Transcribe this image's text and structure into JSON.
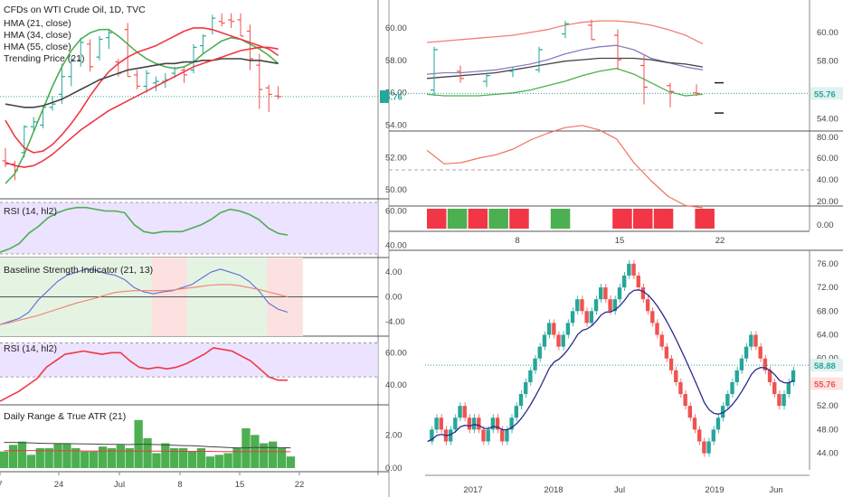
{
  "colors": {
    "up": "#26a69a",
    "down": "#ef5350",
    "green": "#4caf50",
    "red": "#f23645",
    "gray": "#444444",
    "purple": "#8e7cc3",
    "rsi_band": "#e6dcff",
    "salmon": "#f08070",
    "navy": "#2a2a8c",
    "blue": "#5b6fd6",
    "cyan": "#26a69a",
    "price": "#26a69a",
    "price_tag": "#26a69a",
    "down_tag": "#f8b8b8"
  },
  "chart_data": [
    {
      "id": "main",
      "type": "candlestick",
      "title": "CFDs on WTI Crude Oil, 1D, TVC",
      "legend": [
        "HMA (21, close)",
        "HMA (34, close)",
        "HMA (55, close)",
        "Trending Price (21)"
      ],
      "x_ticks": [
        "7",
        "24",
        "Jul",
        "8",
        "15",
        "22"
      ],
      "y_ticks": [
        "60.00",
        "58.00",
        "56.00",
        "54.00",
        "52.00",
        "50.00"
      ],
      "ylim": [
        49.9,
        61.5
      ],
      "last_price": "55.76",
      "ohlc": [
        [
          51.8,
          52.6,
          51.4,
          51.6
        ],
        [
          51.6,
          51.8,
          50.6,
          51.2
        ],
        [
          52.3,
          54.0,
          52.0,
          53.9
        ],
        [
          53.9,
          54.5,
          53.6,
          54.2
        ],
        [
          54.0,
          55.2,
          53.8,
          55.1
        ],
        [
          55.1,
          55.8,
          54.9,
          55.3
        ],
        [
          55.9,
          57.8,
          55.3,
          57.0
        ],
        [
          57.0,
          58.2,
          56.4,
          58.0
        ],
        [
          58.0,
          59.4,
          57.6,
          59.1
        ],
        [
          59.0,
          59.3,
          57.3,
          57.6
        ],
        [
          58.2,
          59.5,
          58.0,
          59.3
        ],
        [
          59.4,
          59.9,
          58.7,
          59.7
        ],
        [
          57.9,
          58.1,
          57.0,
          57.2
        ],
        [
          59.9,
          60.3,
          57.0,
          57.0
        ],
        [
          57.1,
          57.4,
          56.2,
          56.4
        ],
        [
          56.4,
          57.4,
          56.0,
          57.2
        ],
        [
          56.6,
          57.0,
          56.1,
          56.7
        ],
        [
          56.7,
          57.2,
          56.3,
          56.8
        ],
        [
          57.2,
          57.6,
          56.9,
          57.5
        ],
        [
          57.4,
          57.6,
          56.6,
          57.1
        ],
        [
          57.4,
          59.0,
          57.2,
          58.8
        ],
        [
          58.9,
          59.6,
          58.4,
          59.5
        ],
        [
          59.9,
          60.8,
          59.6,
          60.6
        ],
        [
          60.4,
          60.9,
          60.1,
          60.3
        ],
        [
          60.5,
          60.9,
          60.0,
          60.4
        ],
        [
          60.5,
          60.9,
          59.5,
          59.5
        ],
        [
          59.8,
          60.2,
          57.4,
          58.1
        ],
        [
          57.7,
          58.4,
          55.0,
          56.2
        ],
        [
          56.3,
          56.5,
          54.8,
          55.9
        ],
        [
          55.8,
          56.4,
          55.6,
          55.76
        ]
      ],
      "series": [
        {
          "name": "HMA (21, close)",
          "color": "#4caf50",
          "values": [
            50.4,
            51.0,
            52.2,
            53.6,
            55.0,
            56.4,
            57.6,
            58.6,
            59.3,
            59.7,
            59.9,
            59.9,
            59.5,
            59.0,
            58.5,
            58.1,
            57.8,
            57.6,
            57.5,
            57.6,
            57.9,
            58.4,
            58.8,
            59.2,
            59.4,
            59.3,
            59.0,
            58.7,
            58.3,
            57.8
          ]
        },
        {
          "name": "HMA (34, close)",
          "color": "#f23645",
          "values": [
            54.3,
            53.3,
            52.6,
            52.3,
            52.4,
            52.8,
            53.4,
            54.1,
            54.9,
            55.8,
            56.6,
            57.3,
            57.8,
            58.2,
            58.5,
            58.7,
            58.9,
            59.2,
            59.5,
            59.8,
            60.0,
            60.0,
            59.9,
            59.7,
            59.5,
            59.3,
            59.1,
            58.9,
            58.7,
            58.3
          ]
        },
        {
          "name": "HMA (55, close)",
          "color": "#444444",
          "values": [
            55.3,
            55.2,
            55.1,
            55.1,
            55.2,
            55.4,
            55.6,
            55.9,
            56.2,
            56.5,
            56.8,
            57.0,
            57.2,
            57.4,
            57.5,
            57.6,
            57.7,
            57.8,
            57.8,
            57.9,
            57.9,
            58.0,
            58.0,
            58.1,
            58.1,
            58.1,
            58.0,
            58.0,
            57.9,
            57.8
          ]
        },
        {
          "name": "Trending Price (21)",
          "color": "#f23645",
          "values": [
            51.7,
            51.5,
            51.4,
            51.5,
            51.8,
            52.2,
            52.7,
            53.2,
            53.7,
            54.1,
            54.5,
            54.9,
            55.2,
            55.5,
            55.8,
            56.1,
            56.4,
            56.7,
            57.0,
            57.3,
            57.6,
            57.8,
            58.0,
            58.2,
            58.4,
            58.6,
            58.7,
            58.8,
            58.8,
            58.7
          ]
        }
      ]
    },
    {
      "id": "rsi1",
      "type": "line",
      "title": "RSI (14, hl2)",
      "y_ticks": [
        "60.00",
        "40.00"
      ],
      "ylim": [
        35,
        65
      ],
      "band": [
        30,
        70
      ],
      "series": [
        {
          "name": "RSI (14, hl2)",
          "color": "#4caf50",
          "values": [
            36,
            38,
            41,
            47,
            51,
            56,
            59,
            61,
            62,
            62,
            61,
            60,
            60,
            59,
            52,
            48,
            47,
            48,
            48,
            48,
            50,
            52,
            55,
            59,
            61,
            60,
            58,
            55,
            50,
            47,
            46
          ]
        }
      ]
    },
    {
      "id": "baseline",
      "type": "line",
      "title": "Baseline Strength Indicator (21, 13)",
      "y_ticks": [
        "4.00",
        "0.00",
        "-4.00"
      ],
      "ylim": [
        -5.5,
        5.5
      ],
      "series": [
        {
          "name": "blue",
          "color": "#5b6fd6",
          "values": [
            -4.5,
            -4.0,
            -3.5,
            -2.5,
            -0.5,
            1.0,
            2.5,
            3.5,
            4.0,
            4.5,
            4.3,
            3.8,
            3.5,
            2.8,
            1.5,
            0.8,
            0.5,
            0.8,
            1.0,
            1.5,
            2.0,
            3.0,
            4.0,
            4.5,
            4.0,
            3.5,
            2.5,
            1.0,
            -1.0,
            -2.0,
            -2.5
          ]
        },
        {
          "name": "salmon",
          "color": "#f08070",
          "values": [
            -4.5,
            -4.2,
            -3.8,
            -3.4,
            -3.0,
            -2.5,
            -2.0,
            -1.5,
            -1.0,
            -0.6,
            -0.2,
            0.3,
            0.7,
            0.9,
            1.0,
            1.0,
            1.0,
            1.0,
            1.1,
            1.3,
            1.5,
            1.7,
            1.9,
            2.0,
            2.0,
            1.8,
            1.5,
            1.2,
            0.8,
            0.4,
            0.0
          ]
        }
      ],
      "regions": [
        [
          "green",
          0,
          16
        ],
        [
          "red",
          17,
          20
        ],
        [
          "green",
          21,
          29
        ],
        [
          "red",
          30,
          33
        ]
      ]
    },
    {
      "id": "rsi2",
      "type": "line",
      "title": "RSI (14, hl2)",
      "y_ticks": [
        "60.00",
        "40.00"
      ],
      "ylim": [
        30,
        68
      ],
      "band": [
        45,
        66
      ],
      "series": [
        {
          "name": "RSI (14, hl2)",
          "color": "#f23645",
          "values": [
            30,
            33,
            36,
            40,
            44,
            51,
            55,
            59,
            60,
            61,
            60,
            59,
            60,
            60,
            55,
            51,
            50,
            51,
            50,
            51,
            53,
            56,
            59,
            63,
            62,
            61,
            58,
            55,
            50,
            45,
            43,
            43
          ]
        }
      ]
    },
    {
      "id": "range_atr",
      "type": "bar",
      "title": "Daily Range & True ATR (21)",
      "y_ticks": [
        "2.00",
        "0.00"
      ],
      "ylim": [
        0,
        3.6
      ],
      "values": [
        1.0,
        1.4,
        1.6,
        0.8,
        1.2,
        1.2,
        1.5,
        1.5,
        1.2,
        1.0,
        1.0,
        1.3,
        1.2,
        1.4,
        1.2,
        2.9,
        1.8,
        0.9,
        1.5,
        1.2,
        1.2,
        1.0,
        1.2,
        0.7,
        0.8,
        0.9,
        1.2,
        2.4,
        2.0,
        1.5,
        1.6,
        1.2,
        0.7
      ],
      "series": [
        {
          "name": "ATR",
          "color": "#444444",
          "values": [
            1.55,
            1.55,
            1.53,
            1.52,
            1.5,
            1.49,
            1.48,
            1.48,
            1.47,
            1.46,
            1.45,
            1.44,
            1.43,
            1.43,
            1.42,
            1.44,
            1.44,
            1.42,
            1.4,
            1.38,
            1.36,
            1.35,
            1.32,
            1.29,
            1.27,
            1.24,
            1.22,
            1.22,
            1.24,
            1.25,
            1.24,
            1.23,
            1.22
          ]
        },
        {
          "name": "red",
          "color": "#f23645",
          "values": [
            1.05,
            1.05,
            1.06,
            1.06,
            1.05,
            1.05,
            1.04,
            1.04,
            1.04,
            1.03,
            1.03,
            1.03,
            1.03,
            1.03,
            1.02,
            1.02,
            1.02,
            1.02,
            1.02,
            1.01,
            1.01,
            1.01,
            1.01,
            1.01,
            1.0,
            1.0,
            1.0,
            1.0,
            1.0,
            1.0,
            1.0,
            0.99,
            0.99
          ]
        }
      ]
    },
    {
      "id": "topright",
      "type": "line",
      "x_ticks": [
        "8",
        "15",
        "22"
      ],
      "y_ticks": [
        "60.00",
        "58.00",
        "55.76",
        "54.00"
      ],
      "ylim": [
        53.4,
        62.0
      ],
      "last_price": "55.76",
      "series": [
        {
          "name": "upper",
          "color": "#f08070",
          "values": [
            59.3,
            59.4,
            59.5,
            59.6,
            59.7,
            59.8,
            60.0,
            60.2,
            60.5,
            60.7,
            60.8,
            60.8,
            60.7,
            60.5,
            60.2,
            59.8,
            59.2
          ]
        },
        {
          "name": "middle",
          "color": "#8e7cc3",
          "values": [
            57.1,
            57.2,
            57.2,
            57.3,
            57.4,
            57.6,
            57.8,
            58.1,
            58.5,
            58.8,
            59.0,
            59.1,
            58.8,
            58.2,
            57.9,
            57.6,
            57.4
          ]
        },
        {
          "name": "lower",
          "color": "#4caf50",
          "values": [
            55.7,
            55.6,
            55.6,
            55.6,
            55.7,
            55.8,
            56.0,
            56.3,
            56.6,
            57.0,
            57.3,
            57.5,
            57.1,
            56.5,
            55.9,
            55.6,
            55.7
          ]
        },
        {
          "name": "black",
          "color": "#444444",
          "values": [
            56.8,
            56.9,
            57.0,
            57.1,
            57.2,
            57.4,
            57.6,
            57.8,
            58.0,
            58.1,
            58.2,
            58.2,
            58.2,
            58.1,
            57.9,
            57.8,
            57.6
          ]
        }
      ]
    },
    {
      "id": "topright_lower",
      "type": "line",
      "y_ticks": [
        "80.00",
        "60.00",
        "40.00",
        "20.00",
        "0.00"
      ],
      "ylim": [
        0,
        88
      ],
      "values": [
        71,
        59,
        60,
        64,
        67,
        72,
        80,
        86,
        91,
        93,
        89,
        81,
        60,
        44,
        30,
        22,
        20
      ],
      "blocks": [
        "red",
        "green",
        "red",
        "green",
        "red",
        "none",
        "green",
        "none",
        "none",
        "red",
        "red",
        "red",
        "none",
        "red"
      ]
    },
    {
      "id": "renko",
      "type": "renko",
      "x_ticks": [
        "2017",
        "2018",
        "Jul",
        "2019",
        "Jun"
      ],
      "y_ticks": [
        "76.00",
        "72.00",
        "68.00",
        "64.00",
        "60.00",
        "56.00",
        "52.00",
        "48.00",
        "44.00"
      ],
      "ylim": [
        41.5,
        77.5
      ],
      "price_labels": [
        "58.88",
        "55.76"
      ],
      "series": [
        {
          "name": "ma",
          "color": "#2a2a8c"
        }
      ]
    }
  ]
}
